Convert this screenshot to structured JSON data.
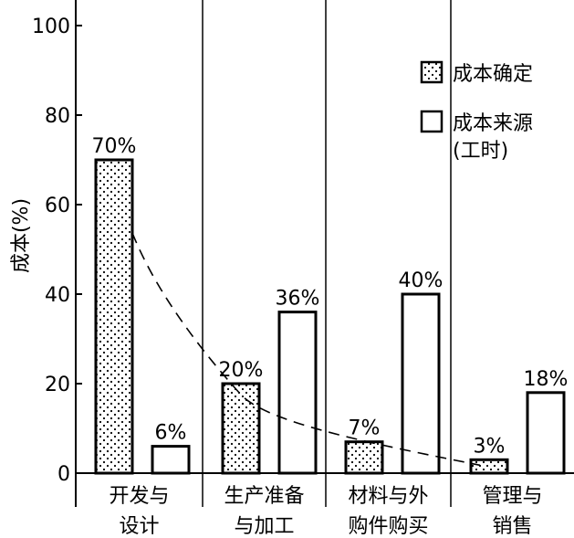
{
  "chart_data": {
    "type": "bar",
    "ylabel": "成本(%)",
    "ylim": [
      0,
      105
    ],
    "yticks": [
      0,
      20,
      40,
      60,
      80,
      100
    ],
    "grid": false,
    "legend_position": "top-right",
    "categories": [
      {
        "lines": [
          "开发与",
          "设计"
        ]
      },
      {
        "lines": [
          "生产准备",
          "与加工"
        ]
      },
      {
        "lines": [
          "材料与外",
          "购件购买"
        ]
      },
      {
        "lines": [
          "管理与",
          "销售"
        ]
      }
    ],
    "series": [
      {
        "name": "成本确定",
        "name_lines": [
          "成本确定"
        ],
        "pattern": "dotted",
        "values": [
          70,
          20,
          7,
          3
        ],
        "labels": [
          "70%",
          "20%",
          "7%",
          "3%"
        ]
      },
      {
        "name": "成本来源(工时)",
        "name_lines": [
          "成本来源",
          "(工时)"
        ],
        "pattern": "empty",
        "values": [
          6,
          36,
          40,
          18
        ],
        "labels": [
          "6%",
          "36%",
          "40%",
          "18%"
        ]
      }
    ],
    "trend_line": {
      "style": "dashed",
      "follows_series": 0
    }
  }
}
